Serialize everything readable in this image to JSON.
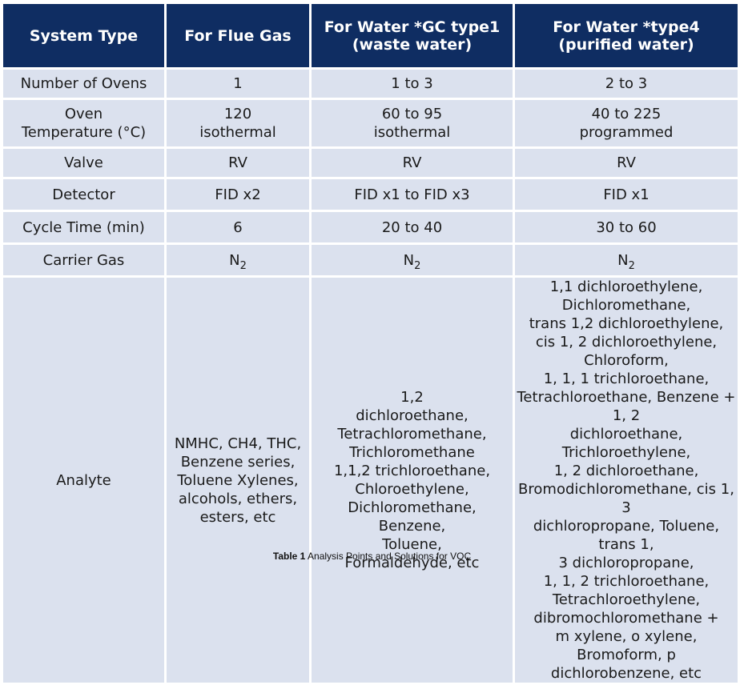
{
  "headers": [
    "System Type",
    "For Flue Gas",
    "For Water *GC type1\n(waste water)",
    "For Water *type4\n(purified water)"
  ],
  "rows": [
    {
      "label": "Number of Ovens",
      "cells": [
        "1",
        "1 to 3",
        "2 to 3"
      ]
    },
    {
      "label": "Oven\nTemperature (°C)",
      "cells": [
        "120\nisothermal",
        "60 to 95\nisothermal",
        "40 to 225\nprogrammed"
      ]
    },
    {
      "label": "Valve",
      "cells": [
        "RV",
        "RV",
        "RV"
      ]
    },
    {
      "label": "Detector",
      "cells": [
        "FID x2",
        "FID x1 to FID x3",
        "FID x1"
      ]
    },
    {
      "label": "Cycle Time (min)",
      "cells": [
        "6",
        "20 to 40",
        "30 to 60"
      ]
    }
  ],
  "carrier_gas": {
    "label": "Carrier Gas",
    "base": "N",
    "subscript": "2"
  },
  "analyte": {
    "label": "Analyte",
    "cells": [
      "NMHC, CH4, THC,\nBenzene series,\nToluene Xylenes,\nalcohols, ethers,\nesters, etc",
      "1,2\ndichloroethane,\nTetrachloromethane,\nTrichloromethane\n1,1,2 trichloroethane,\nChloroethylene,\nDichloromethane,\nBenzene,\nToluene,\nFormaldehyde, etc",
      "1,1 dichloroethylene,\nDichloromethane,\ntrans 1,2 dichloroethylene,\ncis 1, 2 dichloroethylene,\nChloroform,\n1, 1, 1 trichloroethane,\nTetrachloroethane, Benzene + 1, 2\ndichloroethane, Trichloroethylene,\n1, 2 dichloroethane,\nBromodichloromethane, cis 1, 3\ndichloropropane, Toluene, trans 1,\n3 dichloropropane,\n1, 1, 2 trichloroethane,\nTetrachloroethylene,\ndibromochloromethane +\nm xylene, o xylene, Bromoform, p\ndichlorobenzene, etc"
    ]
  },
  "caption": {
    "prefix": "Table 1",
    "text": " Analysis Points and Solutions for VOC"
  },
  "colors": {
    "header_bg": "#0f2d62",
    "cell_bg": "#dbe1ee",
    "header_text": "#ffffff"
  }
}
